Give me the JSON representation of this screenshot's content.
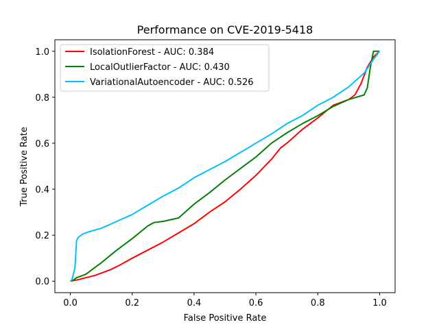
{
  "chart_data": {
    "type": "line",
    "title": "Performance on CVE-2019-5418",
    "xlabel": "False Positive Rate",
    "ylabel": "True Positive Rate",
    "xlim": [
      -0.05,
      1.05
    ],
    "ylim": [
      -0.05,
      1.05
    ],
    "xticks": [
      0.0,
      0.2,
      0.4,
      0.6,
      0.8,
      1.0
    ],
    "yticks": [
      0.0,
      0.2,
      0.4,
      0.6,
      0.8,
      1.0
    ],
    "xtick_labels": [
      "0.0",
      "0.2",
      "0.4",
      "0.6",
      "0.8",
      "1.0"
    ],
    "ytick_labels": [
      "0.0",
      "0.2",
      "0.4",
      "0.6",
      "0.8",
      "1.0"
    ],
    "grid": false,
    "legend_position": "top-left",
    "series": [
      {
        "name": "IsolationForest - AUC: 0.384",
        "color": "#ff0000",
        "x": [
          0.0,
          0.02,
          0.05,
          0.08,
          0.1,
          0.13,
          0.16,
          0.2,
          0.25,
          0.3,
          0.35,
          0.4,
          0.45,
          0.5,
          0.55,
          0.6,
          0.65,
          0.68,
          0.7,
          0.75,
          0.8,
          0.85,
          0.9,
          0.92,
          0.94,
          0.96,
          0.98,
          1.0
        ],
        "y": [
          0.0,
          0.005,
          0.015,
          0.025,
          0.035,
          0.05,
          0.07,
          0.1,
          0.135,
          0.17,
          0.21,
          0.25,
          0.3,
          0.345,
          0.4,
          0.46,
          0.53,
          0.58,
          0.6,
          0.66,
          0.71,
          0.765,
          0.79,
          0.81,
          0.86,
          0.93,
          0.975,
          1.0
        ]
      },
      {
        "name": "LocalOutlierFactor - AUC: 0.430",
        "color": "#008000",
        "x": [
          0.0,
          0.01,
          0.02,
          0.05,
          0.08,
          0.1,
          0.15,
          0.2,
          0.25,
          0.27,
          0.3,
          0.35,
          0.4,
          0.45,
          0.5,
          0.55,
          0.6,
          0.65,
          0.7,
          0.75,
          0.8,
          0.85,
          0.9,
          0.95,
          0.96,
          0.97,
          0.98,
          1.0
        ],
        "y": [
          0.0,
          0.005,
          0.015,
          0.03,
          0.06,
          0.08,
          0.135,
          0.185,
          0.24,
          0.255,
          0.26,
          0.275,
          0.335,
          0.385,
          0.44,
          0.49,
          0.54,
          0.6,
          0.645,
          0.685,
          0.72,
          0.76,
          0.79,
          0.81,
          0.84,
          0.93,
          1.0,
          1.0
        ]
      },
      {
        "name": "VariationalAutoencoder - AUC: 0.526",
        "color": "#00bfff",
        "x": [
          0.0,
          0.005,
          0.01,
          0.015,
          0.02,
          0.025,
          0.04,
          0.06,
          0.1,
          0.15,
          0.2,
          0.25,
          0.3,
          0.35,
          0.4,
          0.45,
          0.5,
          0.55,
          0.6,
          0.65,
          0.7,
          0.75,
          0.8,
          0.85,
          0.9,
          0.95,
          0.98,
          1.0
        ],
        "y": [
          0.0,
          0.005,
          0.03,
          0.06,
          0.175,
          0.19,
          0.205,
          0.215,
          0.23,
          0.26,
          0.29,
          0.33,
          0.37,
          0.405,
          0.45,
          0.485,
          0.52,
          0.56,
          0.6,
          0.64,
          0.685,
          0.72,
          0.765,
          0.8,
          0.845,
          0.905,
          0.965,
          1.0
        ]
      }
    ]
  }
}
